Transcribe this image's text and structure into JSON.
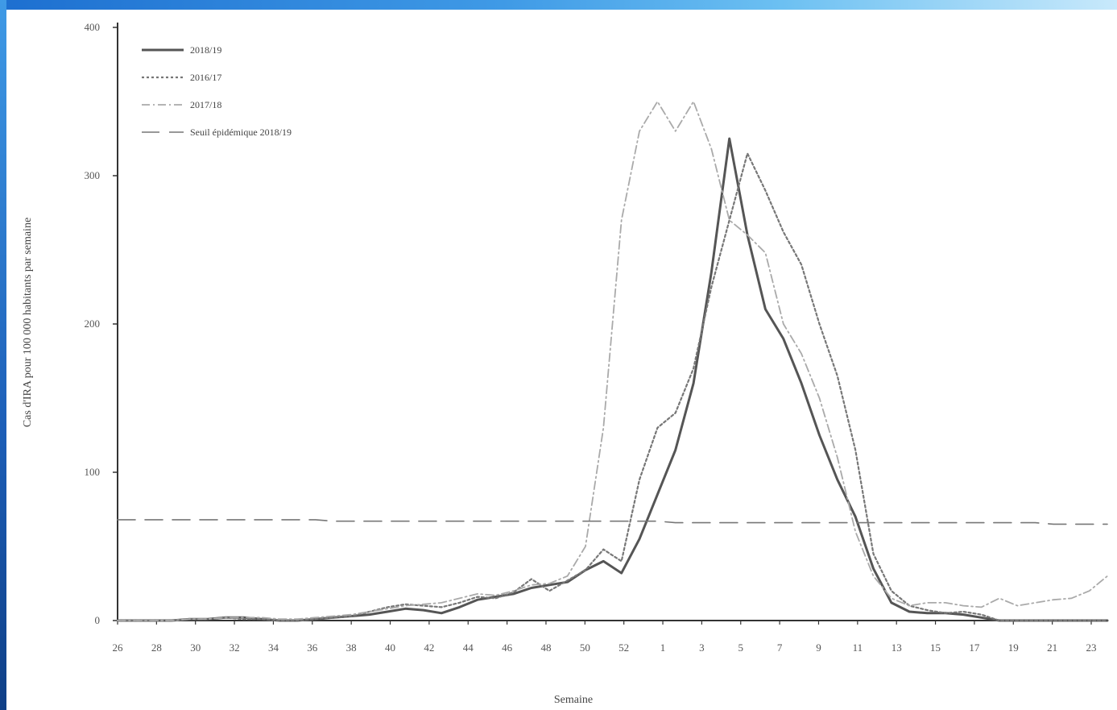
{
  "chart_data": {
    "type": "line",
    "title": "",
    "ylabel": "Cas d'IRA pour 100 000 habitants par semaine",
    "xlabel": "Semaine",
    "ylim": [
      0,
      400
    ],
    "y_ticks": [
      0,
      100,
      200,
      300,
      400
    ],
    "y_tick_labels": [
      "0",
      "100",
      "200",
      "300",
      "400"
    ],
    "x_tick_labels": [
      "26",
      "28",
      "30",
      "32",
      "34",
      "36",
      "38",
      "40",
      "42",
      "44",
      "46",
      "48",
      "50",
      "52",
      "1",
      "3",
      "5",
      "7",
      "9",
      "11",
      "13",
      "15",
      "17",
      "19",
      "21",
      "23"
    ],
    "grid": false,
    "legend": "top-left",
    "series": [
      {
        "name": "2018/19",
        "style": "solid",
        "color": "#555555",
        "width": 3,
        "values": [
          0,
          0,
          0,
          0,
          1,
          1,
          2,
          2,
          1,
          0,
          0,
          1,
          2,
          3,
          4,
          6,
          8,
          7,
          5,
          9,
          14,
          16,
          18,
          22,
          24,
          26,
          34,
          40,
          32,
          55,
          85,
          115,
          160,
          235,
          325,
          260,
          210,
          190,
          160,
          125,
          95,
          70,
          35,
          12,
          6,
          5,
          5,
          4,
          2,
          0,
          0,
          0,
          0,
          0,
          0,
          0
        ]
      },
      {
        "name": "2016/17",
        "style": "dotted",
        "color": "#777777",
        "width": 2.2,
        "values": [
          0,
          0,
          0,
          0,
          1,
          1,
          2,
          1,
          1,
          0,
          0,
          1,
          2,
          3,
          6,
          9,
          11,
          10,
          9,
          12,
          16,
          15,
          19,
          28,
          20,
          27,
          34,
          48,
          40,
          95,
          130,
          140,
          170,
          225,
          270,
          315,
          290,
          262,
          240,
          200,
          165,
          115,
          45,
          20,
          10,
          7,
          5,
          6,
          4,
          0,
          0,
          0,
          0,
          0,
          0,
          0
        ]
      },
      {
        "name": "2017/18",
        "style": "dashdot",
        "color": "#aaaaaa",
        "width": 1.8,
        "values": [
          0,
          0,
          0,
          0,
          1,
          1,
          2,
          2,
          2,
          1,
          1,
          2,
          3,
          4,
          6,
          8,
          10,
          11,
          12,
          15,
          18,
          17,
          20,
          24,
          25,
          30,
          50,
          130,
          270,
          330,
          350,
          330,
          350,
          318,
          270,
          260,
          248,
          200,
          180,
          150,
          110,
          60,
          30,
          15,
          10,
          12,
          12,
          10,
          9,
          15,
          10,
          12,
          14,
          15,
          20,
          30
        ]
      },
      {
        "name": "Seuil épidémique 2018/19",
        "style": "longdash",
        "color": "#777777",
        "width": 1.6,
        "values": [
          68,
          68,
          68,
          68,
          68,
          68,
          68,
          68,
          68,
          68,
          68,
          68,
          67,
          67,
          67,
          67,
          67,
          67,
          67,
          67,
          67,
          67,
          67,
          67,
          67,
          67,
          67,
          67,
          67,
          67,
          67,
          66,
          66,
          66,
          66,
          66,
          66,
          66,
          66,
          66,
          66,
          66,
          66,
          66,
          66,
          66,
          66,
          66,
          66,
          66,
          66,
          66,
          65,
          65,
          65,
          65
        ]
      }
    ]
  }
}
